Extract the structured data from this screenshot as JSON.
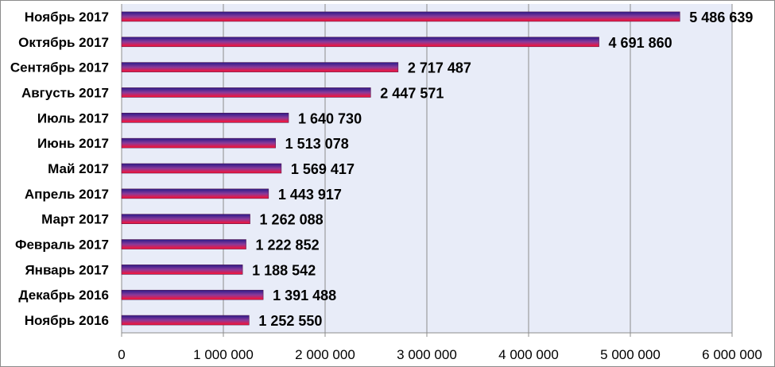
{
  "chart_data": {
    "type": "bar",
    "orientation": "horizontal",
    "title": "",
    "xlabel": "",
    "ylabel": "",
    "categories": [
      "Ноябрь 2017",
      "Октябрь 2017",
      "Сентябрь 2017",
      "Авгуcть 2017",
      "Июль 2017",
      "Июнь 2017",
      "Май 2017",
      "Апрель 2017",
      "Март 2017",
      "Февраль 2017",
      "Январь 2017",
      "Декабрь 2016",
      "Ноябрь 2016"
    ],
    "values": [
      5486639,
      4691860,
      2717487,
      2447571,
      1640730,
      1513078,
      1569417,
      1443917,
      1262088,
      1222852,
      1188542,
      1391488,
      1252550
    ],
    "value_labels": [
      "5 486 639",
      "4 691 860",
      "2 717 487",
      "2 447 571",
      "1 640 730",
      "1 513 078",
      "1 569 417",
      "1 443 917",
      "1 262 088",
      "1 222 852",
      "1 188 542",
      "1 391 488",
      "1 252 550"
    ],
    "xlim": [
      0,
      6000000
    ],
    "ticks": [
      0,
      1000000,
      2000000,
      3000000,
      4000000,
      5000000,
      6000000
    ],
    "tick_labels": [
      "0",
      "1 000 000",
      "2 000 000",
      "3 000 000",
      "4 000 000",
      "5 000 000",
      "6 000 000"
    ],
    "grid": true,
    "legend": "none",
    "colors": {
      "plot_background": "#e8ecf8",
      "gridline": "#8c8c8c",
      "bar_top": "#2a1b8a",
      "bar_middle": "#8a3a9a",
      "bar_bottom": "#ff1030",
      "bar_outline": "#5a1a50"
    }
  }
}
